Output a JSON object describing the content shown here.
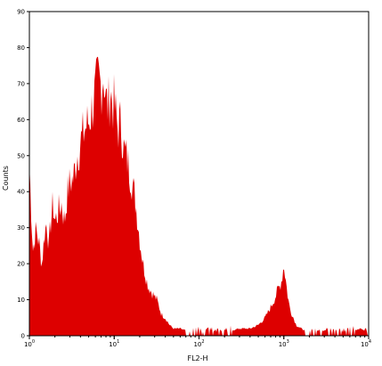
{
  "chart_data": {
    "type": "histogram",
    "xlabel": "FL2-H",
    "ylabel": "Counts",
    "x_scale": "log",
    "xlim": [
      1,
      10000
    ],
    "ylim": [
      0,
      90
    ],
    "y_ticks": [
      0,
      10,
      20,
      30,
      40,
      50,
      60,
      70,
      80,
      90
    ],
    "x_ticks": [
      {
        "base": "10",
        "exp": "0",
        "value": 1
      },
      {
        "base": "10",
        "exp": "1",
        "value": 10
      },
      {
        "base": "10",
        "exp": "2",
        "value": 100
      },
      {
        "base": "10",
        "exp": "3",
        "value": 1000
      },
      {
        "base": "10",
        "exp": "4",
        "value": 10000
      }
    ],
    "fill_color": "#dd0000",
    "grid": false,
    "series": [
      {
        "x": [
          1.0,
          1.1,
          1.2,
          1.3,
          1.4,
          1.5,
          1.6,
          1.7,
          1.8,
          1.9,
          2.0,
          2.2,
          2.4,
          2.6,
          2.8,
          3.0,
          3.3,
          3.6,
          4.0,
          4.5,
          5.0,
          5.5,
          6.0,
          6.5,
          7.0,
          7.5,
          8.0,
          8.5,
          9.0,
          9.5,
          10,
          11,
          12,
          13,
          14,
          15,
          16,
          18,
          20,
          22,
          25,
          28,
          32,
          36,
          40,
          45,
          50,
          60,
          80,
          100,
          150,
          200,
          300,
          400,
          500,
          600,
          700,
          800,
          850,
          900,
          950,
          1000,
          1050,
          1100,
          1150,
          1200,
          1300,
          1400,
          1600,
          2000,
          3000,
          4000,
          6000,
          8000,
          10000
        ],
        "y": [
          48,
          24,
          30,
          26,
          20,
          28,
          32,
          25,
          33,
          37,
          32,
          35,
          37,
          32,
          40,
          43,
          44,
          50,
          54,
          58,
          60,
          64,
          68,
          72,
          70,
          74,
          66,
          64,
          69,
          65,
          65,
          58,
          60,
          52,
          50,
          47,
          44,
          37,
          27,
          20,
          14,
          12,
          10,
          6,
          5,
          3,
          2,
          2,
          1,
          1,
          1,
          1,
          2,
          2,
          3,
          5,
          8,
          11,
          13,
          14,
          16,
          20,
          16,
          12,
          9,
          7,
          5,
          3,
          2,
          1,
          1,
          1,
          1,
          2,
          1
        ]
      }
    ]
  }
}
